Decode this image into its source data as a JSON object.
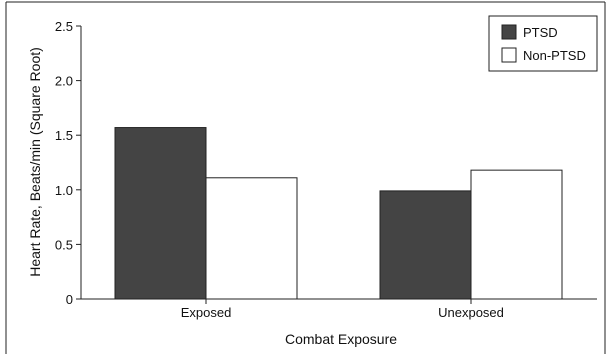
{
  "chart_data": {
    "type": "bar",
    "title": "",
    "xlabel": "Combat Exposure",
    "ylabel": "Heart Rate, Beats/min (Square Root)",
    "ylim": [
      0,
      2.5
    ],
    "yticks": [
      0,
      0.5,
      1.0,
      1.5,
      2.0,
      2.5
    ],
    "ytick_labels": [
      "0",
      "0.5",
      "1.0",
      "1.5",
      "2.0",
      "2.5"
    ],
    "categories": [
      "Exposed",
      "Unexposed"
    ],
    "series": [
      {
        "name": "PTSD",
        "values": [
          1.57,
          0.99
        ],
        "color": "#444444"
      },
      {
        "name": "Non-PTSD",
        "values": [
          1.11,
          1.18
        ],
        "color": "#ffffff"
      }
    ],
    "grid": false,
    "legend_position": "top-right"
  }
}
